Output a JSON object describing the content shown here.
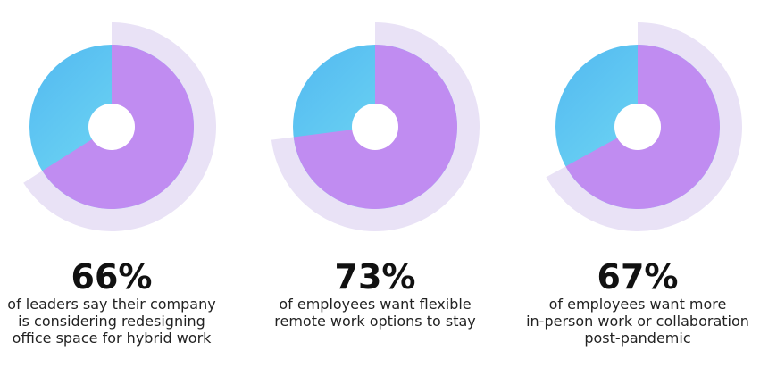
{
  "chart_data": [
    {
      "type": "donut",
      "values": [
        66
      ],
      "value_labels": [
        "66%"
      ],
      "color": "#c08cf1",
      "ring_color": "#e9e2f6",
      "caption": [
        "of leaders say their company",
        "is considering redesigning",
        "office space for hybrid work"
      ]
    },
    {
      "type": "donut",
      "values": [
        73
      ],
      "value_labels": [
        "73%"
      ],
      "color": "#c08cf1",
      "ring_color": "#e9e2f6",
      "caption": [
        "of employees want flexible",
        "remote work options to stay"
      ]
    },
    {
      "type": "donut",
      "values": [
        67
      ],
      "value_labels": [
        "67%"
      ],
      "color": "#c08cf1",
      "ring_color": "#e9e2f6",
      "caption": [
        "of employees want more",
        "in-person work or collaboration",
        "post-pandemic"
      ]
    }
  ]
}
